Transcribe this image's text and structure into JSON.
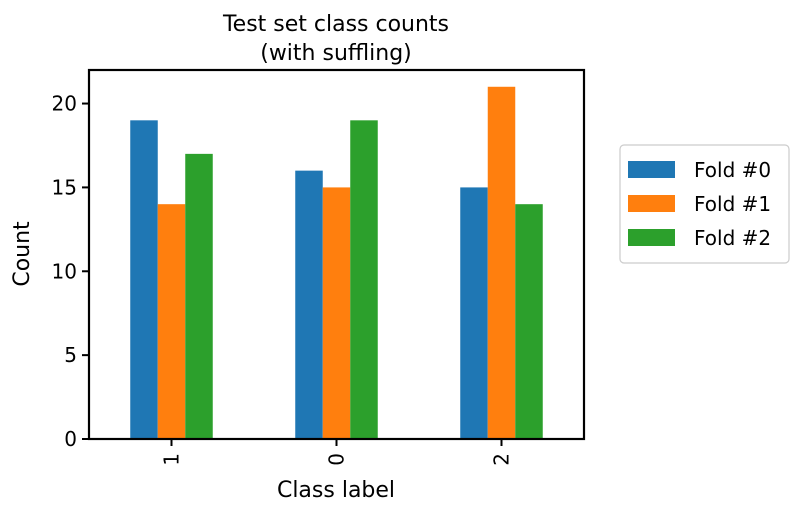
{
  "chart_data": {
    "type": "bar",
    "title_line1": "Test set class counts",
    "title_line2": "(with suffling)",
    "xlabel": "Class label",
    "ylabel": "Count",
    "categories": [
      "1",
      "0",
      "2"
    ],
    "ylim": [
      0,
      22
    ],
    "yticks": [
      0,
      5,
      10,
      15,
      20
    ],
    "grid": false,
    "legend_position": "right",
    "series": [
      {
        "name": "Fold #0",
        "color": "#1f77b4",
        "values": [
          19,
          16,
          15
        ]
      },
      {
        "name": "Fold #1",
        "color": "#ff7f0e",
        "values": [
          14,
          15,
          21
        ]
      },
      {
        "name": "Fold #2",
        "color": "#2ca02c",
        "values": [
          17,
          19,
          14
        ]
      }
    ]
  }
}
